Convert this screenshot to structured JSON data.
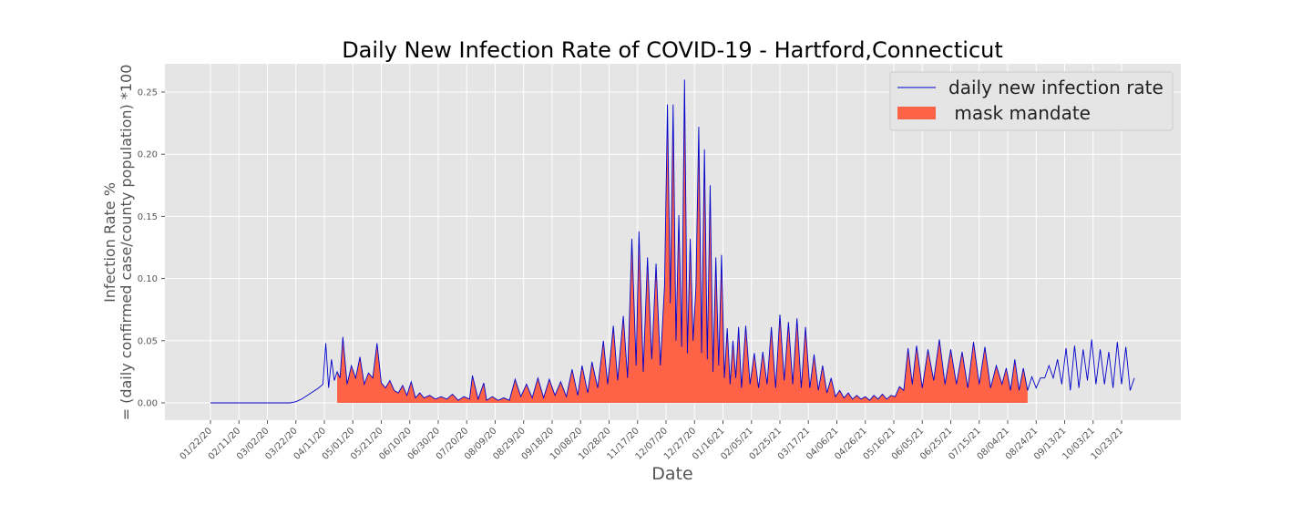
{
  "chart_data": {
    "type": "line",
    "title": "Daily New Infection Rate of COVID-19 - Hartford,Connecticut",
    "xlabel": "Date",
    "ylabel_line1": "Infection Rate %",
    "ylabel_line2": "= (daily confirmed case/county population) *100",
    "ylim": [
      -0.01,
      0.272
    ],
    "grid": true,
    "legend_position": "top-right",
    "y_ticks": [
      "0.00",
      "0.05",
      "0.10",
      "0.15",
      "0.20",
      "0.25"
    ],
    "y_tick_values": [
      0,
      0.05,
      0.1,
      0.15,
      0.2,
      0.25
    ],
    "x_ticks": [
      "01/22/20",
      "02/11/20",
      "03/02/20",
      "03/22/20",
      "04/11/20",
      "05/01/20",
      "05/21/20",
      "06/10/20",
      "06/30/20",
      "07/20/20",
      "08/09/20",
      "08/29/20",
      "09/18/20",
      "10/08/20",
      "10/28/20",
      "11/17/20",
      "12/07/20",
      "12/27/20",
      "01/16/21",
      "02/05/21",
      "02/25/21",
      "03/17/21",
      "04/06/21",
      "04/26/21",
      "05/16/21",
      "06/05/21",
      "06/25/21",
      "07/15/21",
      "08/04/21",
      "08/24/21",
      "09/13/21",
      "10/03/21",
      "10/23/21"
    ],
    "x_start": "01/22/20",
    "x_end": "11/01/21",
    "series": [
      {
        "name": "daily new infection rate",
        "color": "#0000cc",
        "x": [
          "01/22/20",
          "03/10/20",
          "03/14/20",
          "03/18/20",
          "03/22/20",
          "03/26/20",
          "03/30/20",
          "04/03/20",
          "04/07/20",
          "04/10/20",
          "04/12/20",
          "04/14/20",
          "04/16/20",
          "04/18/20",
          "04/20/20",
          "04/22/20",
          "04/24/20",
          "04/27/20",
          "04/30/20",
          "05/03/20",
          "05/06/20",
          "05/09/20",
          "05/12/20",
          "05/15/20",
          "05/18/20",
          "05/21/20",
          "05/24/20",
          "05/27/20",
          "05/30/20",
          "06/02/20",
          "06/05/20",
          "06/08/20",
          "06/11/20",
          "06/14/20",
          "06/17/20",
          "06/20/20",
          "06/24/20",
          "06/28/20",
          "07/02/20",
          "07/06/20",
          "07/10/20",
          "07/14/20",
          "07/18/20",
          "07/22/20",
          "07/24/20",
          "07/28/20",
          "08/01/20",
          "08/03/20",
          "08/07/20",
          "08/11/20",
          "08/15/20",
          "08/19/20",
          "08/23/20",
          "08/27/20",
          "08/31/20",
          "09/04/20",
          "09/08/20",
          "09/12/20",
          "09/16/20",
          "09/20/20",
          "09/24/20",
          "09/28/20",
          "10/02/20",
          "10/06/20",
          "10/09/20",
          "10/13/20",
          "10/16/20",
          "10/20/20",
          "10/24/20",
          "10/27/20",
          "10/31/20",
          "11/03/20",
          "11/07/20",
          "11/10/20",
          "11/13/20",
          "11/16/20",
          "11/18/20",
          "11/21/20",
          "11/24/20",
          "11/27/20",
          "11/30/20",
          "12/03/20",
          "12/06/20",
          "12/08/20",
          "12/10/20",
          "12/12/20",
          "12/14/20",
          "12/16/20",
          "12/18/20",
          "12/20/20",
          "12/22/20",
          "12/24/20",
          "12/26/20",
          "12/28/20",
          "12/30/20",
          "01/01/21",
          "01/03/21",
          "01/05/21",
          "01/07/21",
          "01/09/21",
          "01/11/21",
          "01/13/21",
          "01/15/21",
          "01/17/21",
          "01/19/21",
          "01/21/21",
          "01/23/21",
          "01/25/21",
          "01/27/21",
          "01/29/21",
          "02/01/21",
          "02/04/21",
          "02/07/21",
          "02/10/21",
          "02/13/21",
          "02/16/21",
          "02/19/21",
          "02/22/21",
          "02/25/21",
          "02/28/21",
          "03/03/21",
          "03/06/21",
          "03/09/21",
          "03/12/21",
          "03/15/21",
          "03/18/21",
          "03/21/21",
          "03/24/21",
          "03/27/21",
          "03/30/21",
          "04/02/21",
          "04/05/21",
          "04/08/21",
          "04/11/21",
          "04/14/21",
          "04/17/21",
          "04/20/21",
          "04/23/21",
          "04/26/21",
          "04/29/21",
          "05/02/21",
          "05/05/21",
          "05/08/21",
          "05/11/21",
          "05/14/21",
          "05/17/21",
          "05/20/21",
          "05/23/21",
          "05/26/21",
          "05/29/21",
          "06/01/21",
          "06/05/21",
          "06/09/21",
          "06/13/21",
          "06/17/21",
          "06/21/21",
          "06/25/21",
          "06/29/21",
          "07/03/21",
          "07/07/21",
          "07/11/21",
          "07/15/21",
          "07/19/21",
          "07/23/21",
          "07/27/21",
          "07/31/21",
          "08/03/21",
          "08/06/21",
          "08/09/21",
          "08/12/21",
          "08/15/21",
          "08/18/21",
          "08/21/21",
          "08/24/21",
          "08/27/21",
          "08/30/21",
          "09/02/21",
          "09/05/21",
          "09/08/21",
          "09/11/21",
          "09/14/21",
          "09/17/21",
          "09/20/21",
          "09/23/21",
          "09/26/21",
          "09/29/21",
          "10/02/21",
          "10/05/21",
          "10/08/21",
          "10/11/21",
          "10/14/21",
          "10/17/21",
          "10/20/21",
          "10/23/21",
          "10/26/21",
          "10/29/21",
          "11/01/21"
        ],
        "values": [
          0,
          0,
          0,
          0,
          0.001,
          0.003,
          0.006,
          0.009,
          0.012,
          0.015,
          0.048,
          0.012,
          0.035,
          0.018,
          0.025,
          0.02,
          0.053,
          0.015,
          0.03,
          0.02,
          0.037,
          0.015,
          0.024,
          0.02,
          0.048,
          0.016,
          0.012,
          0.018,
          0.01,
          0.008,
          0.014,
          0.006,
          0.017,
          0.004,
          0.008,
          0.004,
          0.006,
          0.003,
          0.005,
          0.003,
          0.007,
          0.002,
          0.005,
          0.003,
          0.022,
          0.003,
          0.016,
          0.002,
          0.005,
          0.002,
          0.004,
          0.002,
          0.019,
          0.005,
          0.015,
          0.004,
          0.02,
          0.004,
          0.019,
          0.006,
          0.017,
          0.005,
          0.027,
          0.006,
          0.03,
          0.008,
          0.033,
          0.012,
          0.05,
          0.015,
          0.062,
          0.018,
          0.07,
          0.02,
          0.132,
          0.03,
          0.138,
          0.025,
          0.117,
          0.035,
          0.112,
          0.03,
          0.095,
          0.24,
          0.08,
          0.24,
          0.05,
          0.151,
          0.045,
          0.26,
          0.04,
          0.132,
          0.05,
          0.093,
          0.222,
          0.04,
          0.204,
          0.035,
          0.175,
          0.025,
          0.117,
          0.03,
          0.119,
          0.02,
          0.06,
          0.015,
          0.05,
          0.02,
          0.061,
          0.012,
          0.062,
          0.015,
          0.04,
          0.012,
          0.041,
          0.015,
          0.061,
          0.012,
          0.071,
          0.018,
          0.065,
          0.015,
          0.068,
          0.012,
          0.061,
          0.012,
          0.039,
          0.01,
          0.03,
          0.008,
          0.02,
          0.005,
          0.01,
          0.004,
          0.008,
          0.003,
          0.006,
          0.003,
          0.005,
          0.002,
          0.006,
          0.003,
          0.007,
          0.003,
          0.006,
          0.005,
          0.013,
          0.01,
          0.044,
          0.015,
          0.046,
          0.012,
          0.043,
          0.018,
          0.051,
          0.015,
          0.043,
          0.015,
          0.041,
          0.012,
          0.049,
          0.015,
          0.045,
          0.012,
          0.03,
          0.015,
          0.028,
          0.01,
          0.035,
          0.01,
          0.028,
          0.01,
          0.021,
          0.012,
          0.02,
          0.02,
          0.03,
          0.02,
          0.035,
          0.015,
          0.044,
          0.01,
          0.046,
          0.012,
          0.043,
          0.018,
          0.051,
          0.015,
          0.043,
          0.015,
          0.041,
          0.012,
          0.049,
          0.015,
          0.045,
          0.01,
          0.02
        ]
      },
      {
        "name": " mask mandate",
        "color": "#ff6347",
        "fill_start": "04/20/20",
        "fill_end": "08/20/21"
      }
    ]
  }
}
